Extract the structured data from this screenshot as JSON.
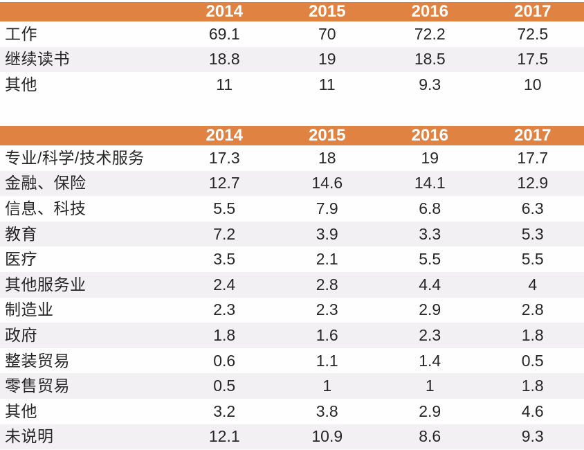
{
  "palette": {
    "header_bg": "#E08342",
    "header_text": "#FFFFFF",
    "row_alt_bg": "#F2F0F2",
    "body_text": "#262626"
  },
  "chart_data": [
    {
      "type": "table",
      "columns": [
        "",
        "2014",
        "2015",
        "2016",
        "2017"
      ],
      "rows": [
        [
          "工作",
          69.1,
          70,
          72.2,
          72.5
        ],
        [
          "继续读书",
          18.8,
          19,
          18.5,
          17.5
        ],
        [
          "其他",
          11,
          11,
          9.3,
          10
        ]
      ],
      "layout": {
        "header_bg": "#E08342",
        "zebra": true
      }
    },
    {
      "type": "table",
      "columns": [
        "",
        "2014",
        "2015",
        "2016",
        "2017"
      ],
      "rows": [
        [
          "专业/科学/技术服务",
          17.3,
          18,
          19,
          17.7
        ],
        [
          "金融、保险",
          12.7,
          14.6,
          14.1,
          12.9
        ],
        [
          "信息、科技",
          5.5,
          7.9,
          6.8,
          6.3
        ],
        [
          "教育",
          7.2,
          3.9,
          3.3,
          5.3
        ],
        [
          "医疗",
          3.5,
          2.1,
          5.5,
          5.5
        ],
        [
          "其他服务业",
          2.4,
          2.8,
          4.4,
          4
        ],
        [
          "制造业",
          2.3,
          2.3,
          2.9,
          2.8
        ],
        [
          "政府",
          1.8,
          1.6,
          2.3,
          1.8
        ],
        [
          "整装贸易",
          0.6,
          1.1,
          1.4,
          0.5
        ],
        [
          "零售贸易",
          0.5,
          1,
          1,
          1.8
        ],
        [
          "其他",
          3.2,
          3.8,
          2.9,
          4.6
        ],
        [
          "未说明",
          12.1,
          10.9,
          8.6,
          9.3
        ]
      ],
      "layout": {
        "header_bg": "#E08342",
        "zebra": true
      }
    }
  ]
}
